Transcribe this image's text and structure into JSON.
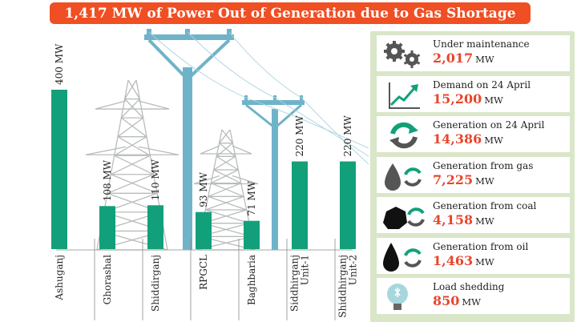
{
  "header": {
    "title": "1,417 MW of Power Out of Generation due to Gas Shortage"
  },
  "chart_data": {
    "type": "bar",
    "title": "1,417 MW of Power Out of Generation due to Gas Shortage",
    "categories": [
      "Ashuganj",
      "Ghorashal",
      "Shiddirganj",
      "RPGCL",
      "Baghbaria",
      "Siddhirganj Unit-1",
      "Shiddhirganj Unit-2"
    ],
    "category_lines": [
      [
        "Ashuganj"
      ],
      [
        "Ghorashal"
      ],
      [
        "Shiddirganj"
      ],
      [
        "RPGCL"
      ],
      [
        "Baghbaria"
      ],
      [
        "Siddhirganj",
        "Unit-1"
      ],
      [
        "Shiddhirganj",
        "Unit-2"
      ]
    ],
    "values": [
      400,
      108,
      110,
      93,
      71,
      220,
      220
    ],
    "value_labels": [
      "400 MW",
      "108 MW",
      "110 MW",
      "93 MW",
      "71 MW",
      "220 MW",
      "220 MW"
    ],
    "ylim": [
      0,
      400
    ],
    "grid": false,
    "bar_color": "#12a07a"
  },
  "stats": [
    {
      "label": "Under maintenance",
      "value": "2,017",
      "unit": "MW",
      "icon": "gears-icon"
    },
    {
      "label": "Demand on 24 April",
      "value": "15,200",
      "unit": "MW",
      "icon": "rising-graph-icon"
    },
    {
      "label": "Generation on 24 April",
      "value": "14,386",
      "unit": "MW",
      "icon": "cycle-arrows-icon"
    },
    {
      "label": "Generation from gas",
      "value": "7,225",
      "unit": "MW",
      "icon": "gas-drop-icon"
    },
    {
      "label": "Generation from coal",
      "value": "4,158",
      "unit": "MW",
      "icon": "coal-lump-icon"
    },
    {
      "label": "Generation from oil",
      "value": "1,463",
      "unit": "MW",
      "icon": "oil-drop-icon"
    },
    {
      "label": "Load shedding",
      "value": "850",
      "unit": "MW",
      "icon": "light-bulb-icon"
    }
  ],
  "colors": {
    "title_bg": "#f04e23",
    "value_text": "#e8452c",
    "panel_bg": "#d9e6c8",
    "pylon": "#6fb3c9",
    "lattice": "#b9bcbc",
    "icon_green": "#12a07a"
  }
}
